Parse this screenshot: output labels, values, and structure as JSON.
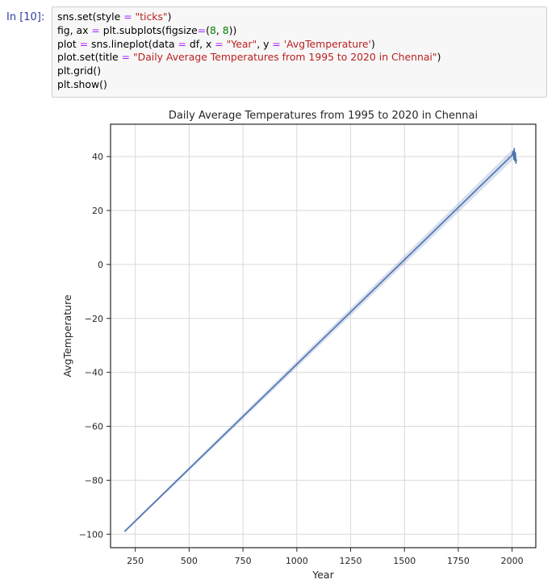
{
  "cell": {
    "prompt": "In [10]:",
    "code_lines": [
      [
        {
          "t": "sns.set(style "
        },
        {
          "t": "=",
          "c": "o"
        },
        {
          "t": " "
        },
        {
          "t": "\"ticks\"",
          "c": "s"
        },
        {
          "t": ")"
        }
      ],
      [
        {
          "t": "fig, ax "
        },
        {
          "t": "=",
          "c": "o"
        },
        {
          "t": " plt.subplots(figsize"
        },
        {
          "t": "=",
          "c": "o"
        },
        {
          "t": "("
        },
        {
          "t": "8",
          "c": "n"
        },
        {
          "t": ", "
        },
        {
          "t": "8",
          "c": "n"
        },
        {
          "t": "))"
        }
      ],
      [
        {
          "t": "plot "
        },
        {
          "t": "=",
          "c": "o"
        },
        {
          "t": " sns.lineplot(data "
        },
        {
          "t": "=",
          "c": "o"
        },
        {
          "t": " df, x "
        },
        {
          "t": "=",
          "c": "o"
        },
        {
          "t": " "
        },
        {
          "t": "\"Year\"",
          "c": "s"
        },
        {
          "t": ", y "
        },
        {
          "t": "=",
          "c": "o"
        },
        {
          "t": " "
        },
        {
          "t": "'AvgTemperature'",
          "c": "s"
        },
        {
          "t": ")"
        }
      ],
      [
        {
          "t": "plot.set(title "
        },
        {
          "t": "=",
          "c": "o"
        },
        {
          "t": " "
        },
        {
          "t": "\"Daily Average Temperatures from 1995 to 2020 in Chennai\"",
          "c": "s"
        },
        {
          "t": ")"
        }
      ],
      [
        {
          "t": "plt.grid()"
        }
      ],
      [
        {
          "t": "plt.show()"
        }
      ]
    ]
  },
  "chart_data": {
    "type": "line",
    "title": "Daily Average Temperatures from 1995 to 2020 in Chennai",
    "xlabel": "Year",
    "ylabel": "AvgTemperature",
    "xlim": [
      135,
      2110
    ],
    "ylim": [
      -105,
      52
    ],
    "xticks": [
      250,
      500,
      750,
      1000,
      1250,
      1500,
      1750,
      2000
    ],
    "yticks": [
      -100,
      -80,
      -60,
      -40,
      -20,
      0,
      20,
      40
    ],
    "grid": true,
    "line_color": "#4c72b0",
    "series": [
      {
        "x": [
          200,
          2000,
          2005,
          2008,
          2010,
          2012,
          2015,
          2018,
          2020
        ],
        "y": [
          -99,
          40.5,
          42,
          39,
          43,
          38.5,
          41.5,
          37.5,
          39
        ]
      }
    ],
    "band": {
      "x": [
        200,
        2000
      ],
      "y_low": [
        -99.5,
        38.5
      ],
      "y_high": [
        -98.5,
        42.5
      ]
    }
  }
}
